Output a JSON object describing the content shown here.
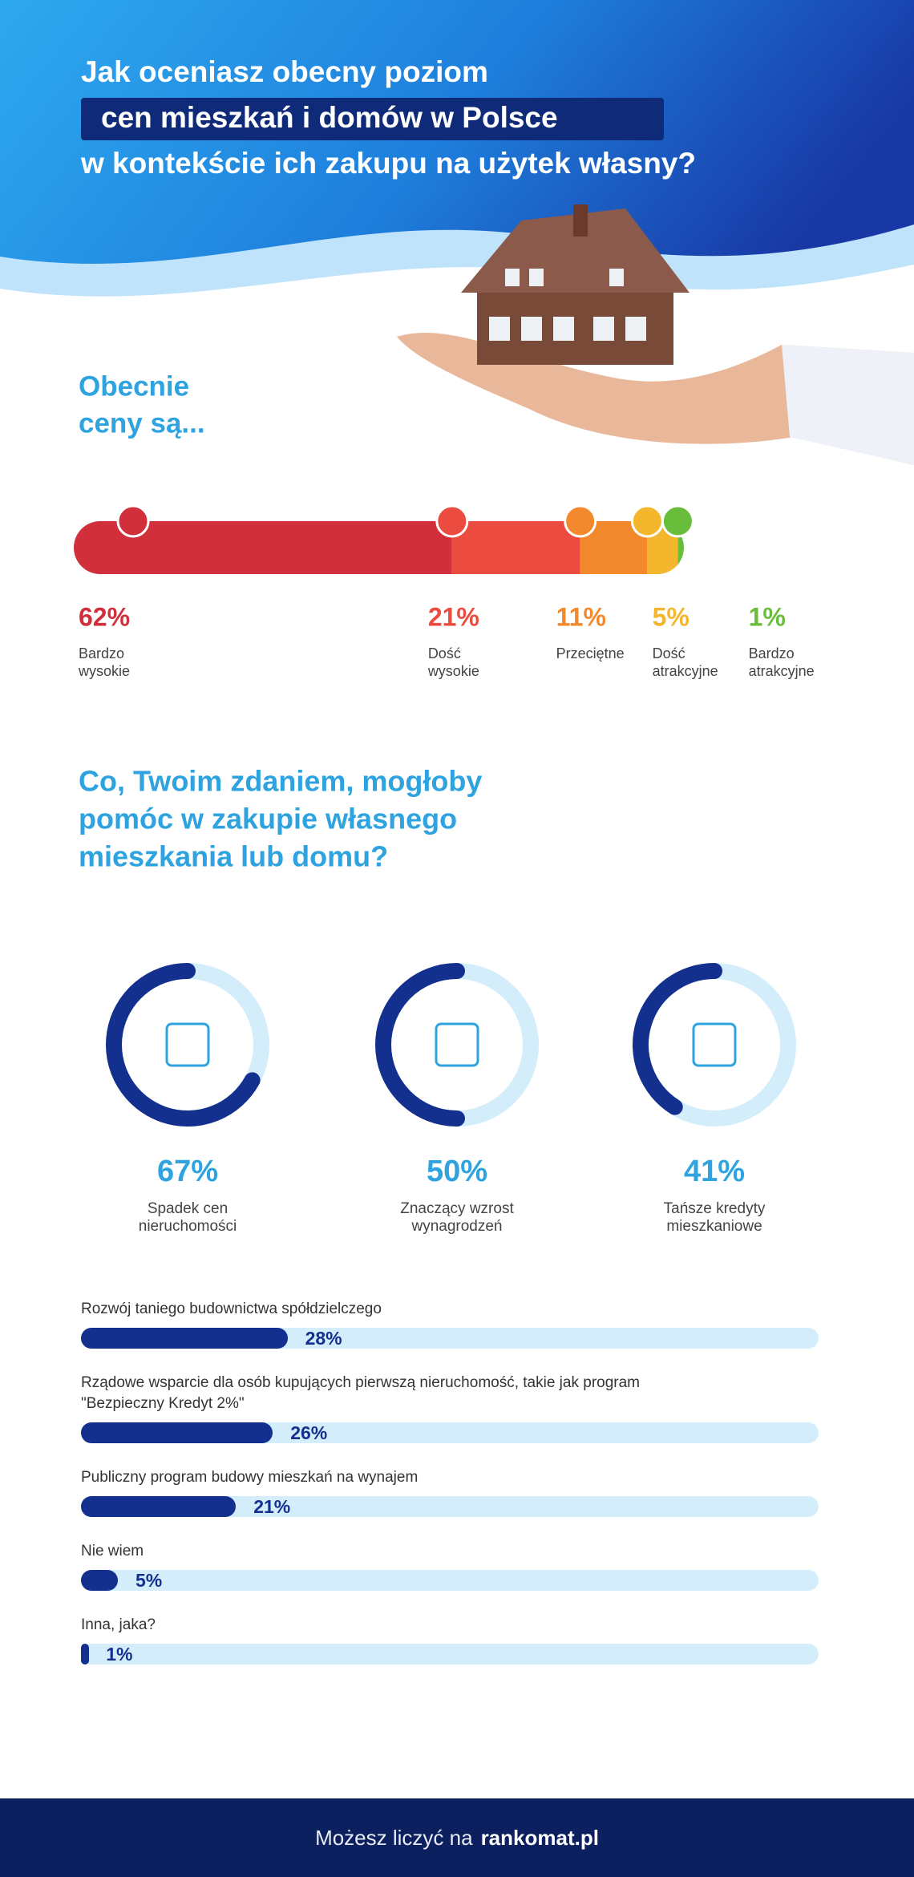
{
  "header": {
    "title": [
      "Jak oceniasz obecny poziom",
      "cen mieszkań i domów w Polsce",
      "w kontekście ich zakupu na użytek własny?"
    ]
  },
  "chart_data": [
    {
      "type": "stacked-bar",
      "title": [
        "Obecnie",
        "ceny są..."
      ],
      "categories": [
        "Bardzo wysokie",
        "Dość wysokie",
        "Przeciętne",
        "Dość atrakcyjne",
        "Bardzo atrakcyjne"
      ],
      "values": [
        62,
        21,
        11,
        5,
        1
      ],
      "value_labels": [
        "62%",
        "21%",
        "11%",
        "5%",
        "1%"
      ],
      "colors": [
        "#d02f3b",
        "#ec4b40",
        "#f28a2d",
        "#f4b62c",
        "#68be3b"
      ]
    },
    {
      "type": "donut",
      "title": [
        "Co, Twoim zdaniem, mogłoby",
        "pomóc w zakupie własnego",
        "mieszkania lub domu?"
      ],
      "categories": [
        "Spadek cen nieruchomości",
        "Znaczący wzrost wynagrodzeń",
        "Tańsze kredyty mieszkaniowe"
      ],
      "values": [
        67,
        50,
        41
      ],
      "value_labels": [
        "67%",
        "50%",
        "41%"
      ],
      "xlim": [
        0,
        100
      ],
      "color": "#13308e",
      "track_color": "#d4edfb"
    },
    {
      "type": "bar",
      "categories": [
        "Rozwój taniego budownictwa spółdzielczego",
        "Rządowe wsparcie dla osób kupujących pierwszą nieruchomość, takie jak program \"Bezpieczny Kredyt 2%\"",
        "Publiczny program budowy mieszkań na wynajem",
        "Nie wiem",
        "Inna, jaka?"
      ],
      "values": [
        28,
        26,
        21,
        5,
        1
      ],
      "value_labels": [
        "28%",
        "26%",
        "21%",
        "5%",
        "1%"
      ],
      "xlim": [
        0,
        100
      ],
      "color": "#13308e",
      "track_color": "#d4edfb"
    }
  ],
  "footer": {
    "text": "Możesz liczyć na",
    "brand": "rankomat.pl"
  }
}
